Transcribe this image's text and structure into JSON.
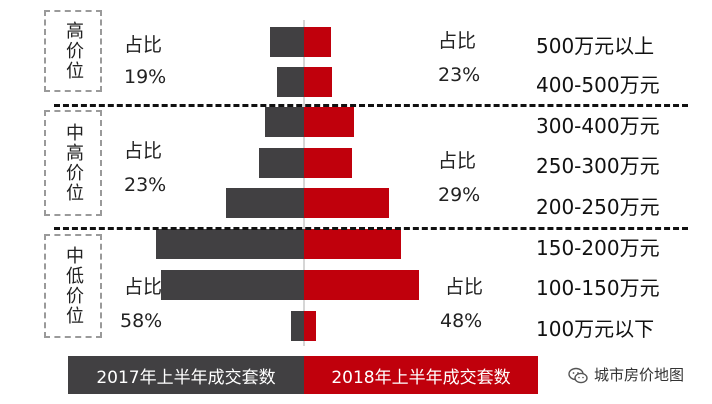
{
  "colors": {
    "y2017": "#414042",
    "y2018": "#c0000c",
    "axis": "#c8c8c8",
    "dash": "#111111"
  },
  "groups": [
    {
      "name": "高价位",
      "left_label": "占比",
      "left_pct": "19%",
      "right_label": "占比",
      "right_pct": "23%"
    },
    {
      "name": "中高价位",
      "left_label": "占比",
      "left_pct": "23%",
      "right_label": "占比",
      "right_pct": "29%"
    },
    {
      "name": "中低价位",
      "left_label": "占比",
      "left_pct": "58%",
      "right_label": "占比",
      "right_pct": "48%"
    }
  ],
  "legend": {
    "y2017": "2017年上半年成交套数",
    "y2018": "2018年上半年成交套数"
  },
  "brand": {
    "text": "城市房价地图",
    "icon": "wechat-icon"
  },
  "chart_data": {
    "type": "bar",
    "orientation": "horizontal-butterfly",
    "categories": [
      "500万元以上",
      "400-500万元",
      "300-400万元",
      "250-300万元",
      "200-250万元",
      "150-200万元",
      "100-150万元",
      "100万元以下"
    ],
    "series": [
      {
        "name": "2017年上半年成交套数",
        "values": [
          34,
          27,
          39,
          45,
          78,
          148,
          143,
          13
        ]
      },
      {
        "name": "2018年上半年成交套数",
        "values": [
          27,
          28,
          50,
          48,
          85,
          97,
          115,
          12
        ]
      }
    ],
    "xlim": [
      0,
      160
    ]
  }
}
